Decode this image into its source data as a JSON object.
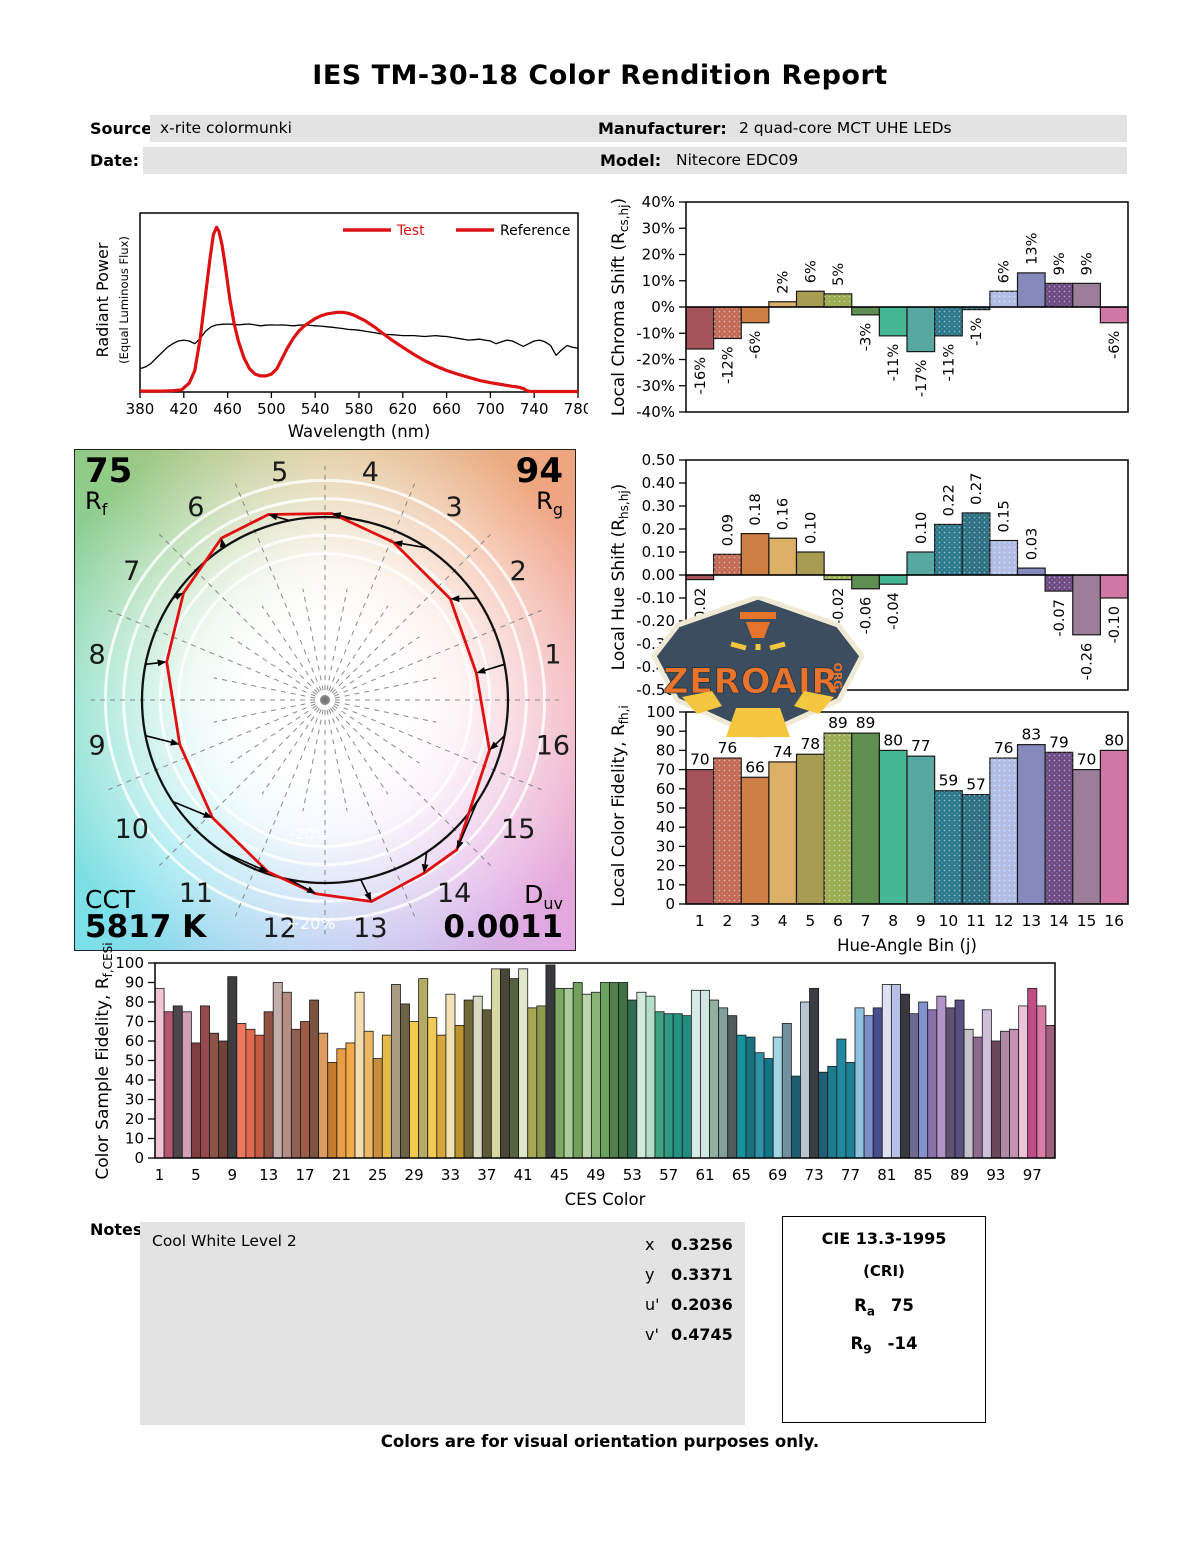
{
  "header": {
    "title": "IES TM-30-18 Color Rendition Report",
    "source_label": "Source:",
    "source_value": "x-rite colormunki",
    "date_label": "Date:",
    "date_value": "",
    "manufacturer_label": "Manufacturer:",
    "manufacturer_value": "2 quad-core MCT UHE LEDs",
    "model_label": "Model:",
    "model_value": "Nitecore EDC09"
  },
  "notes": {
    "label": "Notes:",
    "value": "Cool White Level 2"
  },
  "chromaticity": {
    "rows": [
      {
        "label": "x",
        "value": "0.3256"
      },
      {
        "label": "y",
        "value": "0.3371"
      },
      {
        "label": "u'",
        "value": "0.2036"
      },
      {
        "label": "v'",
        "value": "0.4745"
      }
    ]
  },
  "cie": {
    "title": "CIE 13.3-1995",
    "subtitle": "(CRI)",
    "rows": [
      {
        "base": "R",
        "sub": "a",
        "value": "75"
      },
      {
        "base": "R",
        "sub": "9",
        "value": "-14"
      }
    ]
  },
  "footer": "Colors are for visual orientation purposes only.",
  "watermark": {
    "text": "ZEROAIR",
    "suffix": "ORG",
    "bg": "#3b4d5e",
    "border": "#f0e9d4",
    "accent": "#e8742c",
    "beam": "#f5c63f"
  },
  "hue_bins": {
    "colors": [
      "#a5525a",
      "#c06a55",
      "#cd7f45",
      "#ddb068",
      "#a89c52",
      "#97ad52",
      "#5e9052",
      "#45b795",
      "#57a8a0",
      "#28798e",
      "#2a7085",
      "#aebde8",
      "#8689bb",
      "#6a4a85",
      "#9c7d9a",
      "#d077a3"
    ],
    "dotted": [
      false,
      true,
      false,
      false,
      false,
      true,
      false,
      false,
      false,
      true,
      true,
      true,
      false,
      true,
      false,
      false
    ]
  },
  "chart_data": [
    {
      "id": "spd",
      "type": "line",
      "xlabel": "Wavelength (nm)",
      "ylabel": "Radiant Power",
      "ylabel2": "(Equal Luminous Flux)",
      "xlim": [
        380,
        780
      ],
      "ylim": [
        0,
        1
      ],
      "xticks": [
        380,
        420,
        460,
        500,
        540,
        580,
        620,
        660,
        700,
        740,
        780
      ],
      "legend": [
        "Test",
        "Reference"
      ],
      "series": [
        {
          "name": "Reference",
          "color": "#000000",
          "width": 1.3,
          "points": [
            [
              380,
              0.13
            ],
            [
              385,
              0.14
            ],
            [
              390,
              0.16
            ],
            [
              395,
              0.19
            ],
            [
              400,
              0.22
            ],
            [
              405,
              0.25
            ],
            [
              410,
              0.27
            ],
            [
              415,
              0.285
            ],
            [
              420,
              0.29
            ],
            [
              425,
              0.285
            ],
            [
              430,
              0.27
            ],
            [
              435,
              0.3
            ],
            [
              440,
              0.34
            ],
            [
              445,
              0.365
            ],
            [
              450,
              0.375
            ],
            [
              455,
              0.378
            ],
            [
              460,
              0.38
            ],
            [
              465,
              0.378
            ],
            [
              470,
              0.375
            ],
            [
              475,
              0.378
            ],
            [
              480,
              0.38
            ],
            [
              485,
              0.375
            ],
            [
              490,
              0.37
            ],
            [
              495,
              0.373
            ],
            [
              500,
              0.375
            ],
            [
              505,
              0.374
            ],
            [
              510,
              0.375
            ],
            [
              515,
              0.372
            ],
            [
              520,
              0.37
            ],
            [
              525,
              0.373
            ],
            [
              530,
              0.375
            ],
            [
              535,
              0.372
            ],
            [
              540,
              0.37
            ],
            [
              545,
              0.368
            ],
            [
              550,
              0.365
            ],
            [
              555,
              0.362
            ],
            [
              560,
              0.358
            ],
            [
              565,
              0.355
            ],
            [
              570,
              0.35
            ],
            [
              575,
              0.348
            ],
            [
              580,
              0.345
            ],
            [
              585,
              0.34
            ],
            [
              590,
              0.335
            ],
            [
              595,
              0.33
            ],
            [
              600,
              0.325
            ],
            [
              605,
              0.322
            ],
            [
              610,
              0.32
            ],
            [
              615,
              0.318
            ],
            [
              620,
              0.315
            ],
            [
              630,
              0.315
            ],
            [
              640,
              0.31
            ],
            [
              650,
              0.315
            ],
            [
              655,
              0.312
            ],
            [
              660,
              0.31
            ],
            [
              665,
              0.305
            ],
            [
              670,
              0.3
            ],
            [
              675,
              0.295
            ],
            [
              680,
              0.29
            ],
            [
              685,
              0.292
            ],
            [
              690,
              0.295
            ],
            [
              695,
              0.29
            ],
            [
              700,
              0.285
            ],
            [
              705,
              0.27
            ],
            [
              710,
              0.28
            ],
            [
              715,
              0.29
            ],
            [
              720,
              0.285
            ],
            [
              725,
              0.27
            ],
            [
              730,
              0.255
            ],
            [
              735,
              0.27
            ],
            [
              740,
              0.285
            ],
            [
              745,
              0.29
            ],
            [
              750,
              0.28
            ],
            [
              755,
              0.26
            ],
            [
              760,
              0.205
            ],
            [
              765,
              0.235
            ],
            [
              770,
              0.26
            ],
            [
              775,
              0.25
            ],
            [
              780,
              0.245
            ]
          ]
        },
        {
          "name": "Test",
          "color": "#dd1111",
          "width": 3.2,
          "points": [
            [
              380,
              0.005
            ],
            [
              400,
              0.005
            ],
            [
              410,
              0.007
            ],
            [
              418,
              0.012
            ],
            [
              425,
              0.05
            ],
            [
              430,
              0.12
            ],
            [
              435,
              0.3
            ],
            [
              440,
              0.55
            ],
            [
              444,
              0.75
            ],
            [
              447,
              0.88
            ],
            [
              450,
              0.92
            ],
            [
              452,
              0.9
            ],
            [
              455,
              0.82
            ],
            [
              458,
              0.7
            ],
            [
              462,
              0.52
            ],
            [
              466,
              0.38
            ],
            [
              470,
              0.28
            ],
            [
              475,
              0.19
            ],
            [
              480,
              0.13
            ],
            [
              485,
              0.1
            ],
            [
              490,
              0.09
            ],
            [
              495,
              0.09
            ],
            [
              500,
              0.1
            ],
            [
              505,
              0.13
            ],
            [
              510,
              0.19
            ],
            [
              515,
              0.25
            ],
            [
              520,
              0.3
            ],
            [
              525,
              0.34
            ],
            [
              530,
              0.37
            ],
            [
              535,
              0.39
            ],
            [
              540,
              0.41
            ],
            [
              545,
              0.425
            ],
            [
              550,
              0.435
            ],
            [
              555,
              0.44
            ],
            [
              560,
              0.445
            ],
            [
              565,
              0.445
            ],
            [
              570,
              0.44
            ],
            [
              575,
              0.43
            ],
            [
              580,
              0.415
            ],
            [
              585,
              0.4
            ],
            [
              590,
              0.38
            ],
            [
              595,
              0.36
            ],
            [
              600,
              0.335
            ],
            [
              610,
              0.29
            ],
            [
              620,
              0.25
            ],
            [
              630,
              0.21
            ],
            [
              640,
              0.175
            ],
            [
              650,
              0.145
            ],
            [
              660,
              0.12
            ],
            [
              670,
              0.1
            ],
            [
              680,
              0.082
            ],
            [
              690,
              0.065
            ],
            [
              700,
              0.052
            ],
            [
              710,
              0.042
            ],
            [
              715,
              0.037
            ],
            [
              720,
              0.032
            ],
            [
              725,
              0.028
            ],
            [
              730,
              0.02
            ],
            [
              733,
              0.008
            ],
            [
              736,
              0.004
            ],
            [
              740,
              0.003
            ],
            [
              760,
              0.003
            ],
            [
              780,
              0.003
            ]
          ]
        }
      ]
    },
    {
      "id": "chroma_shift",
      "type": "bar",
      "ylabel_pre": "Local Chroma Shift (R",
      "ylabel_sub": "cs,hj",
      "ylabel_post": ")",
      "ylim": [
        -40,
        40
      ],
      "ytick_step": 10,
      "tick_format": "percent",
      "categories": [
        1,
        2,
        3,
        4,
        5,
        6,
        7,
        8,
        9,
        10,
        11,
        12,
        13,
        14,
        15,
        16
      ],
      "values": [
        -16,
        -12,
        -6,
        2,
        6,
        5,
        -3,
        -11,
        -17,
        -11,
        -1,
        6,
        13,
        9,
        9,
        -6
      ],
      "labels": [
        "-16%",
        "-12%",
        "-6%",
        "2%",
        "6%",
        "5%",
        "-3%",
        "-11%",
        "-17%",
        "-11%",
        "-1%",
        "6%",
        "13%",
        "9%",
        "9%",
        "-6%"
      ],
      "label_style": "rotated",
      "use_bin_colors": true
    },
    {
      "id": "hue_shift",
      "type": "bar",
      "ylabel_pre": "Local Hue Shift (R",
      "ylabel_sub": "hs,hj",
      "ylabel_post": ")",
      "ylim": [
        -0.5,
        0.5
      ],
      "ytick_step": 0.1,
      "tick_format": "dec2",
      "categories": [
        1,
        2,
        3,
        4,
        5,
        6,
        7,
        8,
        9,
        10,
        11,
        12,
        13,
        14,
        15,
        16
      ],
      "values": [
        -0.02,
        0.09,
        0.18,
        0.16,
        0.1,
        -0.02,
        -0.06,
        -0.04,
        0.1,
        0.22,
        0.27,
        0.15,
        0.03,
        -0.07,
        -0.26,
        -0.1
      ],
      "labels": [
        "-0.02",
        "0.09",
        "0.18",
        "0.16",
        "0.10",
        "-0.02",
        "-0.06",
        "-0.04",
        "0.10",
        "0.22",
        "0.27",
        "0.15",
        "0.03",
        "-0.07",
        "-0.26",
        "-0.10"
      ],
      "label_style": "rotated",
      "use_bin_colors": true
    },
    {
      "id": "local_fidelity",
      "type": "bar",
      "ylabel_pre": "Local Color Fidelity, R",
      "ylabel_sub": "fh,i",
      "ylabel_post": "",
      "xlabel": "Hue-Angle Bin (j)",
      "ylim": [
        0,
        100
      ],
      "ytick_step": 10,
      "tick_format": "int",
      "categories": [
        1,
        2,
        3,
        4,
        5,
        6,
        7,
        8,
        9,
        10,
        11,
        12,
        13,
        14,
        15,
        16
      ],
      "values": [
        70,
        76,
        66,
        74,
        78,
        89,
        89,
        80,
        77,
        59,
        57,
        76,
        83,
        79,
        70,
        80
      ],
      "label_style": "top",
      "use_bin_colors": true,
      "xtick_labels": [
        "1",
        "2",
        "3",
        "4",
        "5",
        "6",
        "7",
        "8",
        "9",
        "10",
        "11",
        "12",
        "13",
        "14",
        "15",
        "16"
      ]
    },
    {
      "id": "cvg",
      "type": "radar",
      "rf": "75",
      "rf_base": "R",
      "rf_sub": "f",
      "rg": "94",
      "rg_base": "R",
      "rg_sub": "g",
      "cct_label": "CCT",
      "cct": "5817 K",
      "duv_base": "D",
      "duv_sub": "uv",
      "duv": "0.0011",
      "ring_inner_label": "-20%",
      "ring_outer_label": "+20%",
      "bin_labels": [
        "1",
        "2",
        "3",
        "4",
        "5",
        "6",
        "7",
        "8",
        "9",
        "10",
        "11",
        "12",
        "13",
        "14",
        "15",
        "16"
      ],
      "reference_color": "#111111",
      "test_color": "#e01010"
    },
    {
      "id": "ces",
      "type": "bar",
      "ylabel_pre": "Color Sample Fidelity, R",
      "ylabel_sub": "f,CESi",
      "ylabel_post": "",
      "xlabel": "CES Color",
      "ylim": [
        0,
        100
      ],
      "ytick_step": 10,
      "tick_format": "int",
      "xtick_values": [
        1,
        5,
        9,
        13,
        17,
        21,
        25,
        29,
        33,
        37,
        41,
        45,
        49,
        53,
        57,
        61,
        65,
        69,
        73,
        77,
        81,
        85,
        89,
        93,
        97
      ],
      "values": [
        87,
        75,
        78,
        75,
        59,
        78,
        64,
        60,
        93,
        69,
        66,
        63,
        75,
        90,
        85,
        66,
        70,
        81,
        64,
        49,
        56,
        59,
        85,
        65,
        51,
        63,
        89,
        79,
        70,
        92,
        72,
        63,
        84,
        68,
        81,
        83,
        76,
        97,
        97,
        92,
        97,
        77,
        78,
        99,
        87,
        87,
        90,
        84,
        85,
        90,
        90,
        90,
        81,
        85,
        83,
        75,
        74,
        74,
        73,
        86,
        86,
        81,
        77,
        73,
        63,
        62,
        54,
        51,
        62,
        69,
        42,
        80,
        87,
        44,
        47,
        61,
        49,
        77,
        73,
        77,
        89,
        89,
        84,
        74,
        80,
        76,
        83,
        77,
        81,
        66,
        62,
        76,
        60,
        65,
        66,
        78,
        87,
        78,
        68
      ],
      "colors": [
        "#f2c3d4",
        "#b4566f",
        "#4d474b",
        "#d2a0b4",
        "#7e3f41",
        "#954a50",
        "#8e5347",
        "#6e4239",
        "#3f3c3e",
        "#ee7961",
        "#e06a50",
        "#c75b48",
        "#8f5244",
        "#c3aeab",
        "#b68d82",
        "#8f6052",
        "#9e5c48",
        "#7d5340",
        "#dc9c60",
        "#c47c2e",
        "#eb9d43",
        "#f3ab49",
        "#f4ddae",
        "#ecb868",
        "#c98e3c",
        "#e5bb4d",
        "#aa9c82",
        "#6d6246",
        "#f5ca4e",
        "#b7aa62",
        "#f2ca58",
        "#d5a63c",
        "#f0e2b2",
        "#bb942f",
        "#716738",
        "#dadac2",
        "#615a3a",
        "#d8d8a2",
        "#4c4639",
        "#57623e",
        "#e0e8ca",
        "#a6a654",
        "#8c9c4c",
        "#37393b",
        "#7caa64",
        "#aacb9a",
        "#71a05a",
        "#bad6aa",
        "#87b474",
        "#6ca260",
        "#518149",
        "#417144",
        "#306d51",
        "#d1eadc",
        "#b4dec6",
        "#41a282",
        "#319780",
        "#249282",
        "#208c7e",
        "#d7eae4",
        "#d1e7e4",
        "#91b0a0",
        "#81a09a",
        "#505c5a",
        "#16959e",
        "#19717e",
        "#3191aa",
        "#127487",
        "#a1d6e4",
        "#7191a1",
        "#1d5d6e",
        "#b8c4d2",
        "#3a3d42",
        "#205f78",
        "#1e7b8e",
        "#2089a0",
        "#1f7f96",
        "#8fc3e0",
        "#7b8fc9",
        "#4a4e8f",
        "#dee2f2",
        "#b9c0e8",
        "#393a40",
        "#6f6a92",
        "#8490cf",
        "#8871ab",
        "#b195c9",
        "#5e5372",
        "#575080",
        "#c6c2cc",
        "#8d6a8e",
        "#cfc0dc",
        "#6b4559",
        "#b088a8",
        "#c493b5",
        "#ecc2d8",
        "#c04d85",
        "#d87ba6",
        "#9f5f7f"
      ]
    }
  ]
}
